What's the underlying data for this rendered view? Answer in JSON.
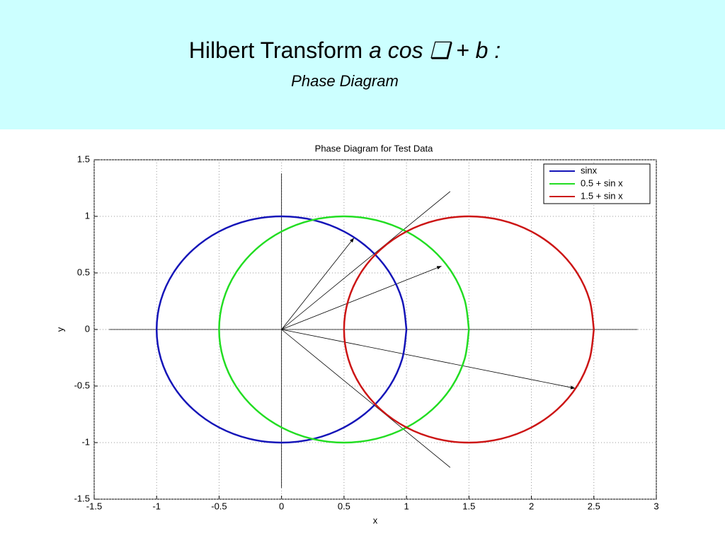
{
  "slide": {
    "title": "Hilbert Transform",
    "title_formula": "a cos ❑ + b :",
    "subtitle": "Phase Diagram"
  },
  "chart_data": {
    "type": "line",
    "title": "Phase Diagram for Test Data",
    "x_label": "x",
    "y_label": "y",
    "xlim": [
      -1.5,
      3
    ],
    "xticks": [
      -1.5,
      -1,
      -0.5,
      0,
      0.5,
      1,
      1.5,
      2,
      2.5,
      3
    ],
    "ylim": [
      -1.5,
      1.5
    ],
    "yticks": [
      -1.5,
      -1,
      -0.5,
      0,
      0.5,
      1,
      1.5
    ],
    "grid": true,
    "legend": "upper-right",
    "series": [
      {
        "name": "sinx",
        "color": "#1414b8",
        "x": [
          1,
          0.966,
          0.866,
          0.707,
          0.5,
          0.259,
          0,
          -0.259,
          -0.5,
          -0.707,
          -0.866,
          -0.966,
          -1,
          -0.966,
          -0.866,
          -0.707,
          -0.5,
          -0.259,
          0,
          0.259,
          0.5,
          0.707,
          0.866,
          0.966,
          1
        ],
        "values": [
          0,
          0.259,
          0.5,
          0.707,
          0.866,
          0.966,
          1,
          0.966,
          0.866,
          0.707,
          0.5,
          0.259,
          0,
          -0.259,
          -0.5,
          -0.707,
          -0.866,
          -0.966,
          -1,
          -0.966,
          -0.866,
          -0.707,
          -0.5,
          -0.259,
          0
        ]
      },
      {
        "name": "0.5 + sin x",
        "color": "#22dd22",
        "x": [
          1.5,
          1.466,
          1.366,
          1.207,
          1,
          0.759,
          0.5,
          0.241,
          0,
          -0.207,
          -0.366,
          -0.466,
          -0.5,
          -0.466,
          -0.366,
          -0.207,
          0,
          0.241,
          0.5,
          0.759,
          1,
          1.207,
          1.366,
          1.466,
          1.5
        ],
        "values": [
          0,
          0.259,
          0.5,
          0.707,
          0.866,
          0.966,
          1,
          0.966,
          0.866,
          0.707,
          0.5,
          0.259,
          0,
          -0.259,
          -0.5,
          -0.707,
          -0.866,
          -0.966,
          -1,
          -0.966,
          -0.866,
          -0.707,
          -0.5,
          -0.259,
          0
        ]
      },
      {
        "name": "1.5 + sin x",
        "color": "#cc1414",
        "x": [
          2.5,
          2.466,
          2.366,
          2.207,
          2,
          1.759,
          1.5,
          1.241,
          1,
          0.793,
          0.634,
          0.534,
          0.5,
          0.534,
          0.634,
          0.793,
          1,
          1.241,
          1.5,
          1.759,
          2,
          2.207,
          2.366,
          2.466,
          2.5
        ],
        "values": [
          0,
          0.259,
          0.5,
          0.707,
          0.866,
          0.966,
          1,
          0.966,
          0.866,
          0.707,
          0.5,
          0.259,
          0,
          -0.259,
          -0.5,
          -0.707,
          -0.866,
          -0.966,
          -1,
          -0.966,
          -0.866,
          -0.707,
          -0.5,
          -0.259,
          0
        ]
      }
    ],
    "lines": [
      {
        "x": [
          -1.38,
          2.85
        ],
        "y": [
          0,
          0
        ]
      },
      {
        "x": [
          0,
          0
        ],
        "y": [
          -1.4,
          1.38
        ]
      },
      {
        "x": [
          0,
          1.35
        ],
        "y": [
          0,
          1.22
        ]
      },
      {
        "x": [
          0,
          1.35
        ],
        "y": [
          0,
          -1.22
        ]
      }
    ],
    "arrows": [
      {
        "x": [
          0,
          0.58
        ],
        "y": [
          0,
          0.81
        ]
      },
      {
        "x": [
          0,
          1.28
        ],
        "y": [
          0,
          0.56
        ]
      },
      {
        "x": [
          0,
          2.35
        ],
        "y": [
          0,
          -0.52
        ]
      }
    ]
  }
}
